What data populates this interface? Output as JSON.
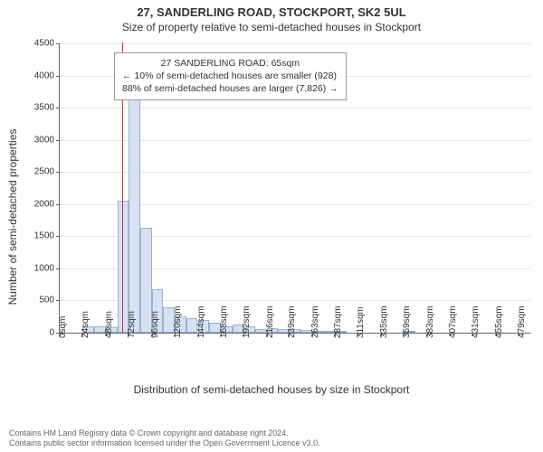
{
  "title": "27, SANDERLING ROAD, STOCKPORT, SK2 5UL",
  "subtitle": "Size of property relative to semi-detached houses in Stockport",
  "xlabel": "Distribution of semi-detached houses by size in Stockport",
  "ylabel": "Number of semi-detached properties",
  "chart": {
    "type": "histogram",
    "background_color": "#ffffff",
    "grid_color": "#e6e6e6",
    "axis_color": "#666666",
    "bar_fill": "#d6e2f3",
    "bar_border": "#9db0cc",
    "marker_color": "#cc3333",
    "marker_value_sqm": 65,
    "ylim": [
      0,
      4500
    ],
    "ytick_step": 500,
    "x_bin_width": 12,
    "x_categories": [
      "0sqm",
      "24sqm",
      "48sqm",
      "72sqm",
      "96sqm",
      "120sqm",
      "144sqm",
      "168sqm",
      "192sqm",
      "216sqm",
      "239sqm",
      "263sqm",
      "287sqm",
      "311sqm",
      "335sqm",
      "359sqm",
      "383sqm",
      "407sqm",
      "431sqm",
      "455sqm",
      "479sqm"
    ],
    "x_tick_positions": [
      0,
      24,
      48,
      72,
      96,
      120,
      144,
      168,
      192,
      216,
      239,
      263,
      287,
      311,
      335,
      359,
      383,
      407,
      431,
      455,
      479
    ],
    "x_max": 491,
    "bars": [
      {
        "x": 24,
        "v": 100
      },
      {
        "x": 36,
        "v": 100
      },
      {
        "x": 48,
        "v": 90
      },
      {
        "x": 60,
        "v": 2050
      },
      {
        "x": 72,
        "v": 3750
      },
      {
        "x": 84,
        "v": 1630
      },
      {
        "x": 96,
        "v": 680
      },
      {
        "x": 108,
        "v": 400
      },
      {
        "x": 120,
        "v": 260
      },
      {
        "x": 132,
        "v": 230
      },
      {
        "x": 144,
        "v": 200
      },
      {
        "x": 156,
        "v": 160
      },
      {
        "x": 168,
        "v": 100
      },
      {
        "x": 180,
        "v": 130
      },
      {
        "x": 192,
        "v": 100
      },
      {
        "x": 204,
        "v": 60
      },
      {
        "x": 216,
        "v": 70
      },
      {
        "x": 228,
        "v": 60
      },
      {
        "x": 239,
        "v": 60
      },
      {
        "x": 251,
        "v": 40
      },
      {
        "x": 263,
        "v": 25
      },
      {
        "x": 275,
        "v": 20
      },
      {
        "x": 287,
        "v": 10
      },
      {
        "x": 359,
        "v": 25
      }
    ],
    "label_fontsize": 12,
    "tick_fontsize": 10,
    "title_fontsize": 13
  },
  "annotation": {
    "line1": "27 SANDERLING ROAD: 65sqm",
    "line2": "← 10% of semi-detached houses are smaller (928)",
    "line3": "88% of semi-detached houses are larger (7,826) →"
  },
  "footer": {
    "line1": "Contains HM Land Registry data © Crown copyright and database right 2024.",
    "line2": "Contains public sector information licensed under the Open Government Licence v3.0."
  }
}
